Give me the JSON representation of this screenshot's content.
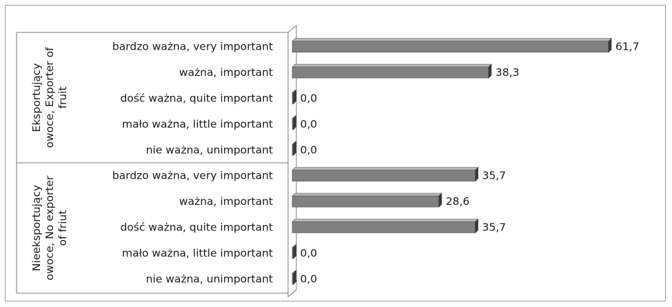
{
  "chart_data": {
    "type": "bar",
    "orientation": "horizontal",
    "style": "3d",
    "bar_color": "#808080",
    "groups": [
      {
        "name_lines": [
          "Eksportujący",
          "owoce, Exporter of",
          "fruit"
        ],
        "categories": [
          "bardzo ważna, very important",
          "ważna, important",
          "dość ważna, quite important",
          "mało ważna, little important",
          "nie ważna, unimportant"
        ],
        "values": [
          61.7,
          38.3,
          0.0,
          0.0,
          0.0
        ],
        "value_labels": [
          "61,7",
          "38,3",
          "0,0",
          "0,0",
          "0,0"
        ]
      },
      {
        "name_lines": [
          "Nieeksportujący",
          "owoce, No exporter",
          "of friut"
        ],
        "categories": [
          "bardzo ważna, very important",
          "ważna, important",
          "dość ważna, quite important",
          "mało ważna, little important",
          "nie ważna, unimportant"
        ],
        "values": [
          35.7,
          28.6,
          35.7,
          0.0,
          0.0
        ],
        "value_labels": [
          "35,7",
          "28,6",
          "35,7",
          "0,0",
          "0,0"
        ]
      }
    ],
    "xlim": [
      0,
      70
    ],
    "grid": false,
    "legend": "none"
  }
}
